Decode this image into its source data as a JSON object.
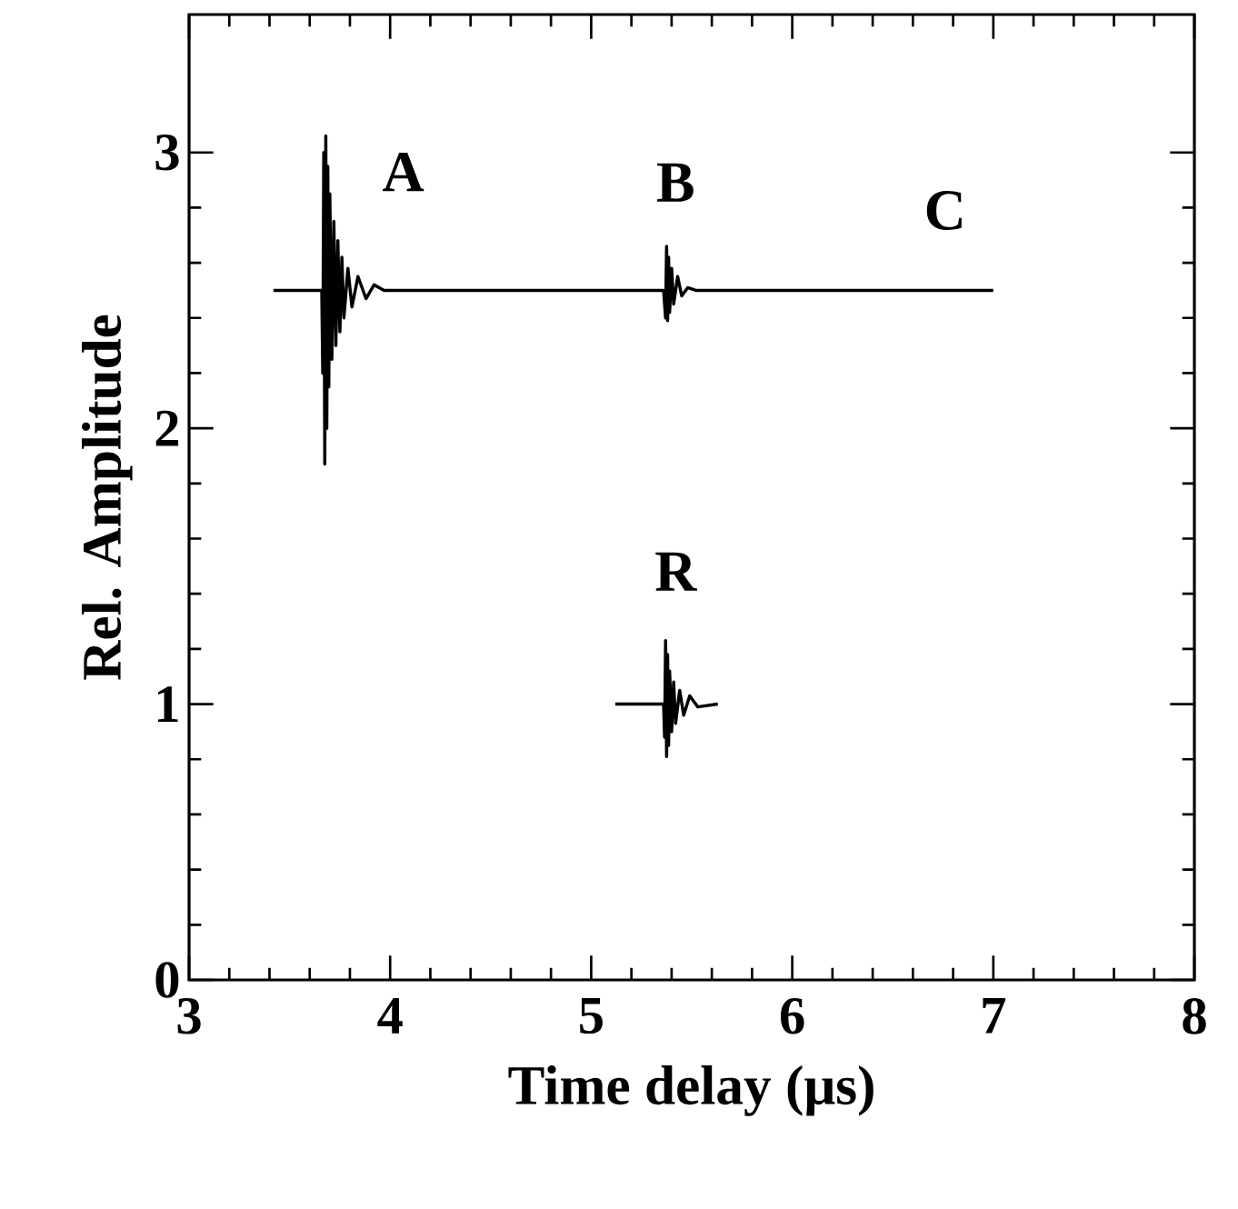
{
  "chart_data": {
    "type": "line",
    "xlabel": "Time delay (μs)",
    "ylabel": "Rel. Amplitude",
    "xlim": [
      3,
      8
    ],
    "ylim": [
      0,
      3.5
    ],
    "xticks": [
      3,
      4,
      5,
      6,
      7,
      8
    ],
    "yticks": [
      0,
      1,
      2,
      3
    ],
    "grid": false,
    "marker": "none",
    "line_style": "solid",
    "series": [
      {
        "color": "#000000",
        "x": [
          3.42,
          3.66,
          3.665,
          3.67,
          3.675,
          3.68,
          3.685,
          3.69,
          3.695,
          3.7,
          3.71,
          3.72,
          3.73,
          3.74,
          3.75,
          3.76,
          3.77,
          3.79,
          3.81,
          3.84,
          3.88,
          3.92,
          3.97,
          5.36,
          5.37,
          5.375,
          5.38,
          5.385,
          5.39,
          5.4,
          5.41,
          5.43,
          5.45,
          5.48,
          5.52,
          7.0
        ],
        "values": [
          2.5,
          2.5,
          2.2,
          3.0,
          1.87,
          3.06,
          2.0,
          2.95,
          2.15,
          2.85,
          2.25,
          2.75,
          2.3,
          2.68,
          2.35,
          2.62,
          2.4,
          2.58,
          2.44,
          2.55,
          2.47,
          2.52,
          2.5,
          2.5,
          2.4,
          2.66,
          2.39,
          2.62,
          2.42,
          2.58,
          2.45,
          2.55,
          2.48,
          2.51,
          2.5,
          2.5
        ]
      },
      {
        "color": "#000000",
        "x": [
          5.12,
          5.36,
          5.365,
          5.37,
          5.375,
          5.38,
          5.385,
          5.39,
          5.4,
          5.41,
          5.42,
          5.44,
          5.46,
          5.49,
          5.53,
          5.63
        ],
        "values": [
          1.0,
          1.0,
          0.88,
          1.23,
          0.81,
          1.18,
          0.85,
          1.12,
          0.9,
          1.08,
          0.93,
          1.05,
          0.96,
          1.03,
          0.99,
          1.0
        ]
      }
    ],
    "annotations": [
      "A",
      "B",
      "C",
      "R"
    ]
  }
}
